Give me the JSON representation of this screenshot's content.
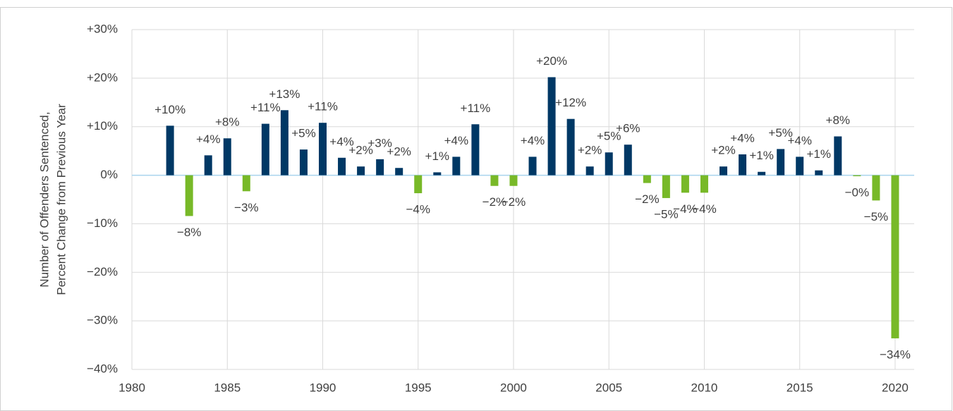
{
  "chart_data": {
    "type": "bar",
    "ylabel": [
      "Number of Offenders Sentenced,",
      "Percent Change from Previous Year"
    ],
    "x": [
      1982,
      1983,
      1984,
      1985,
      1986,
      1987,
      1988,
      1989,
      1990,
      1991,
      1992,
      1993,
      1994,
      1995,
      1996,
      1997,
      1998,
      1999,
      2000,
      2001,
      2002,
      2003,
      2004,
      2005,
      2006,
      2007,
      2008,
      2009,
      2010,
      2011,
      2012,
      2013,
      2014,
      2015,
      2016,
      2017,
      2018,
      2019,
      2020
    ],
    "values": [
      10.2,
      -8.4,
      4.1,
      7.6,
      -3.3,
      10.6,
      13.4,
      5.3,
      10.8,
      3.6,
      1.8,
      3.3,
      1.5,
      -3.7,
      0.6,
      3.8,
      10.5,
      -2.2,
      -2.2,
      3.8,
      20.2,
      11.6,
      1.8,
      4.7,
      6.3,
      -1.6,
      -4.7,
      -3.6,
      -3.6,
      1.8,
      4.3,
      0.7,
      5.4,
      3.8,
      1.0,
      8.0,
      -0.2,
      -5.2,
      -33.6
    ],
    "value_labels": [
      "+10%",
      "−8%",
      "+4%",
      "+8%",
      "−3%",
      "+11%",
      "+13%",
      "+5%",
      "+11%",
      "+4%",
      "+2%",
      "+3%",
      "+2%",
      "−4%",
      "+1%",
      "+4%",
      "+11%",
      "−2%",
      "−2%",
      "+4%",
      "+20%",
      "+12%",
      "+2%",
      "+5%",
      "+6%",
      "−2%",
      "−5%",
      "−4%",
      "−4%",
      "+2%",
      "+4%",
      "+1%",
      "+5%",
      "+4%",
      "+1%",
      "+8%",
      "−0%",
      "−5%",
      "−34%"
    ],
    "positive_color": "#003865",
    "negative_color": "#78b928",
    "xlim": [
      1980,
      2021
    ],
    "xticks": [
      1980,
      1985,
      1990,
      1995,
      2000,
      2005,
      2010,
      2015,
      2020
    ],
    "ylim": [
      -40,
      30
    ],
    "yticks": [
      {
        "value": -40,
        "label": "−40%"
      },
      {
        "value": -30,
        "label": "−30%"
      },
      {
        "value": -20,
        "label": "−20%"
      },
      {
        "value": -10,
        "label": "−10%"
      },
      {
        "value": 0,
        "label": "0%"
      },
      {
        "value": 10,
        "label": "+10%"
      },
      {
        "value": 20,
        "label": "+20%"
      },
      {
        "value": 30,
        "label": "+30%"
      }
    ],
    "grid": true
  }
}
